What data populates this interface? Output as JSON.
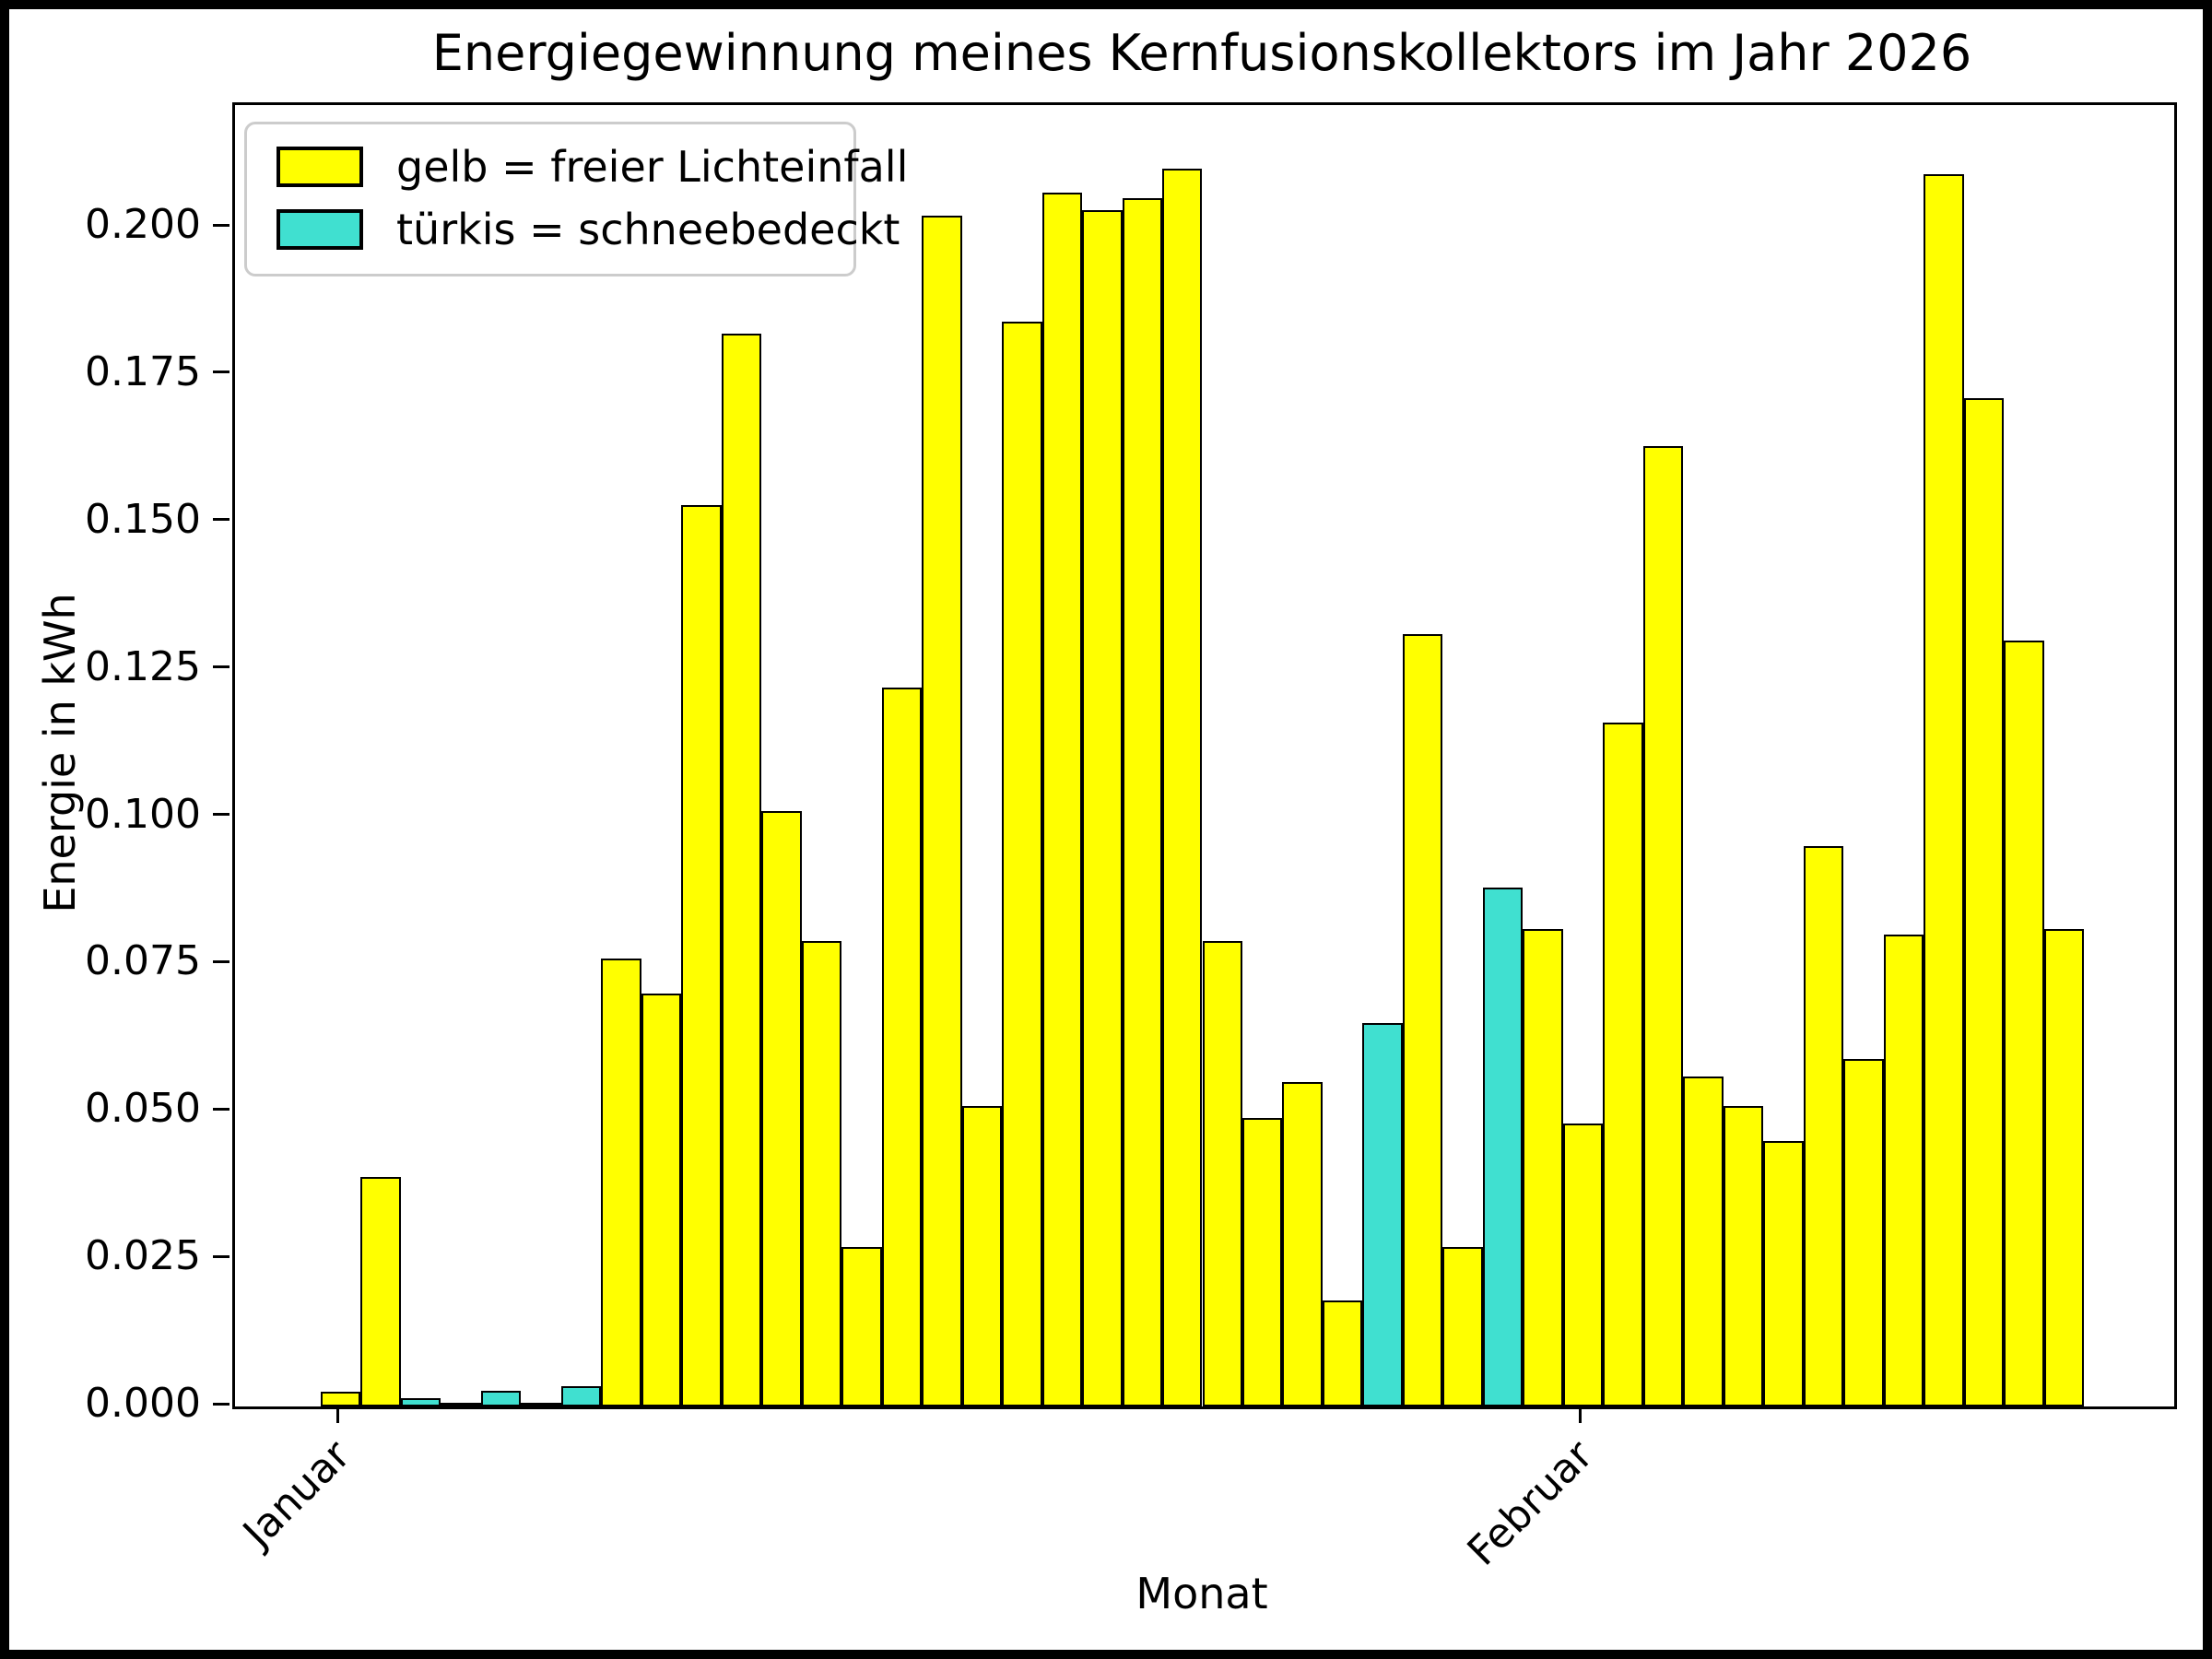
{
  "page": {
    "background": "#ffffff",
    "frame_color": "#000000"
  },
  "chart_data": {
    "type": "bar",
    "title": "Energiegewinnung meines Kernfusionskollektors im Jahr 2026",
    "xlabel": "Monat",
    "ylabel": "Energie in kWh",
    "ylim": [
      0,
      0.2208
    ],
    "grid": false,
    "bar_edge_color": "#000000",
    "colors": {
      "free_light": "#ffff00",
      "snow_covered": "#40e0d0"
    },
    "yticks": {
      "values": [
        0.0,
        0.025,
        0.05,
        0.075,
        0.1,
        0.125,
        0.15,
        0.175,
        0.2
      ],
      "labels": [
        "0.000",
        "0.025",
        "0.050",
        "0.075",
        "0.100",
        "0.125",
        "0.150",
        "0.175",
        "0.200"
      ]
    },
    "xticks": [
      {
        "label": "Januar",
        "bar_index": 0
      },
      {
        "label": "Februar",
        "bar_index": 31
      }
    ],
    "values": [
      0.0025,
      0.039,
      0.0014,
      0.0004,
      0.0027,
      0.0006,
      0.0034,
      0.076,
      0.07,
      0.153,
      0.182,
      0.101,
      0.079,
      0.027,
      0.122,
      0.202,
      0.051,
      0.184,
      0.206,
      0.203,
      0.205,
      0.21,
      0.079,
      0.049,
      0.055,
      0.018,
      0.065,
      0.131,
      0.027,
      0.088,
      0.081,
      0.048,
      0.116,
      0.163,
      0.056,
      0.051,
      0.045,
      0.095,
      0.059,
      0.08,
      0.209,
      0.171,
      0.13,
      0.081
    ],
    "snow_covered": [
      0,
      0,
      1,
      1,
      1,
      1,
      1,
      0,
      0,
      0,
      0,
      0,
      0,
      0,
      0,
      0,
      0,
      0,
      0,
      0,
      0,
      0,
      0,
      0,
      0,
      0,
      1,
      0,
      0,
      1,
      0,
      0,
      0,
      0,
      0,
      0,
      0,
      0,
      0,
      0,
      0,
      0,
      0,
      0
    ],
    "legend": {
      "position": "upper left",
      "entries": [
        {
          "label": "gelb = freier Lichteinfall",
          "color_key": "free_light",
          "color": "#ffff00"
        },
        {
          "label": "türkis = schneebedeckt",
          "color_key": "snow_covered",
          "color": "#40e0d0"
        }
      ]
    }
  }
}
